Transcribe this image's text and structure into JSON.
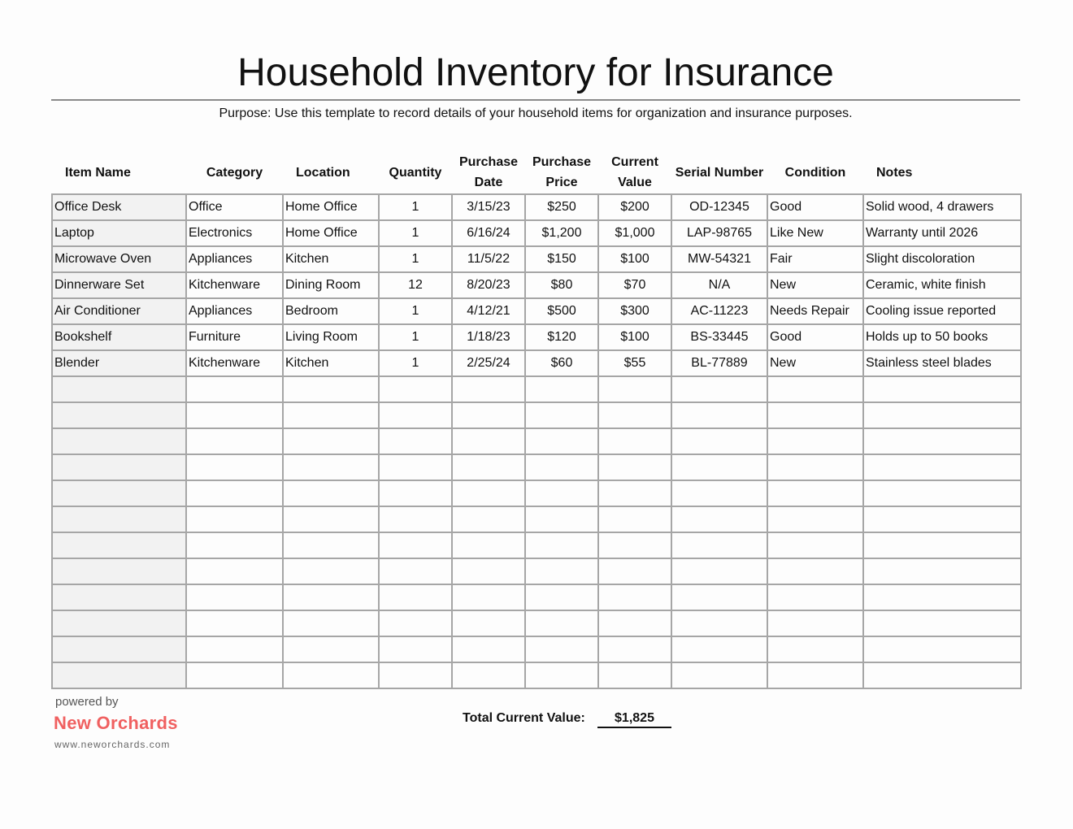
{
  "title": "Household Inventory for Insurance",
  "purpose": "Purpose: Use this template to record details of your household items for organization and insurance purposes.",
  "columns": [
    "Item Name",
    "Category",
    "Location",
    "Quantity",
    "Purchase Date",
    "Purchase Price",
    "Current Value",
    "Serial Number",
    "Condition",
    "Notes"
  ],
  "rows": [
    [
      "Office Desk",
      "Office",
      "Home Office",
      "1",
      "3/15/23",
      "$250",
      "$200",
      "OD-12345",
      "Good",
      "Solid wood, 4 drawers"
    ],
    [
      "Laptop",
      "Electronics",
      "Home Office",
      "1",
      "6/16/24",
      "$1,200",
      "$1,000",
      "LAP-98765",
      "Like New",
      "Warranty until 2026"
    ],
    [
      "Microwave Oven",
      "Appliances",
      "Kitchen",
      "1",
      "11/5/22",
      "$150",
      "$100",
      "MW-54321",
      "Fair",
      "Slight discoloration"
    ],
    [
      "Dinnerware Set",
      "Kitchenware",
      "Dining Room",
      "12",
      "8/20/23",
      "$80",
      "$70",
      "N/A",
      "New",
      "Ceramic, white finish"
    ],
    [
      "Air Conditioner",
      "Appliances",
      "Bedroom",
      "1",
      "4/12/21",
      "$500",
      "$300",
      "AC-11223",
      "Needs Repair",
      "Cooling issue reported"
    ],
    [
      "Bookshelf",
      "Furniture",
      "Living Room",
      "1",
      "1/18/23",
      "$120",
      "$100",
      "BS-33445",
      "Good",
      "Holds up to 50 books"
    ],
    [
      "Blender",
      "Kitchenware",
      "Kitchen",
      "1",
      "2/25/24",
      "$60",
      "$55",
      "BL-77889",
      "New",
      "Stainless steel blades"
    ]
  ],
  "empty_rows": 12,
  "footer": {
    "powered_by": "powered by",
    "brand": "New Orchards",
    "url": "www.neworchards.com",
    "total_label": "Total Current Value:",
    "total_value": "$1,825"
  },
  "colors": {
    "brand": "#f06060",
    "first_col_bg": "#f2f2f2",
    "grid": "#a6a6a6"
  }
}
